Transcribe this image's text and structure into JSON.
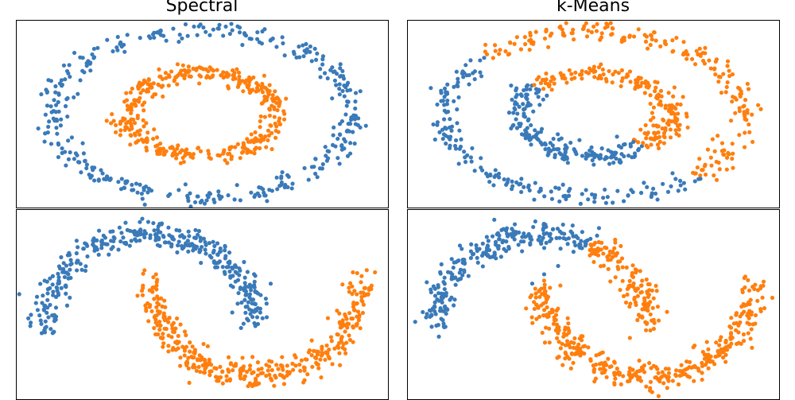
{
  "colors": {
    "cluster0": "#3a7ab9",
    "cluster1": "#ff7f0e"
  },
  "chart_data": [
    {
      "type": "scatter",
      "panel": "top-left",
      "title": "Spectral",
      "dataset": "circles",
      "axes_visible": false,
      "xlim": [
        -1.25,
        1.25
      ],
      "ylim": [
        -1.12,
        1.12
      ],
      "series": [
        {
          "shape": "ring",
          "cx": 0.0,
          "cy": 0.0,
          "rx": 1.0,
          "ry": 1.0,
          "color": "#3a7ab9",
          "count": 380
        },
        {
          "shape": "ring",
          "cx": 0.0,
          "cy": 0.0,
          "rx": 0.5,
          "ry": 0.5,
          "color": "#ff7f0e",
          "count": 380
        }
      ]
    },
    {
      "type": "scatter",
      "panel": "top-right",
      "title": "k-Means",
      "dataset": "circles",
      "axes_visible": false,
      "xlim": [
        -1.25,
        1.25
      ],
      "ylim": [
        -1.12,
        1.12
      ],
      "split_line": {
        "a": 1,
        "b": 1,
        "c": 0.05,
        "above_color": "#ff7f0e",
        "below_color": "#3a7ab9"
      },
      "series": [
        {
          "shape": "ring",
          "cx": 0.0,
          "cy": 0.0,
          "rx": 1.0,
          "ry": 1.0,
          "count": 380
        },
        {
          "shape": "ring",
          "cx": 0.0,
          "cy": 0.0,
          "rx": 0.5,
          "ry": 0.5,
          "count": 380
        }
      ]
    },
    {
      "type": "scatter",
      "panel": "bottom-left",
      "title": "",
      "dataset": "moons",
      "axes_visible": false,
      "xlim": [
        -1.25,
        2.25
      ],
      "ylim": [
        -0.75,
        1.25
      ],
      "series": [
        {
          "shape": "arc",
          "cx": 0.0,
          "cy": 0.0,
          "r": 1.0,
          "from_deg": 0,
          "to_deg": 180,
          "color": "#3a7ab9",
          "count": 380
        },
        {
          "shape": "arc",
          "cx": 1.0,
          "cy": 0.5,
          "r": 1.0,
          "from_deg": 180,
          "to_deg": 360,
          "color": "#ff7f0e",
          "count": 380
        }
      ]
    },
    {
      "type": "scatter",
      "panel": "bottom-right",
      "title": "",
      "dataset": "moons",
      "axes_visible": false,
      "xlim": [
        -1.25,
        2.25
      ],
      "ylim": [
        -0.75,
        1.25
      ],
      "split_line": {
        "a": 1,
        "b": -1.2,
        "c": 0.6,
        "above_color": "#ff7f0e",
        "below_color": "#3a7ab9"
      },
      "series": [
        {
          "shape": "arc",
          "cx": 0.0,
          "cy": 0.0,
          "r": 1.0,
          "from_deg": 0,
          "to_deg": 180,
          "count": 380
        },
        {
          "shape": "arc",
          "cx": 1.0,
          "cy": 0.5,
          "r": 1.0,
          "from_deg": 180,
          "to_deg": 360,
          "count": 380
        }
      ]
    }
  ]
}
